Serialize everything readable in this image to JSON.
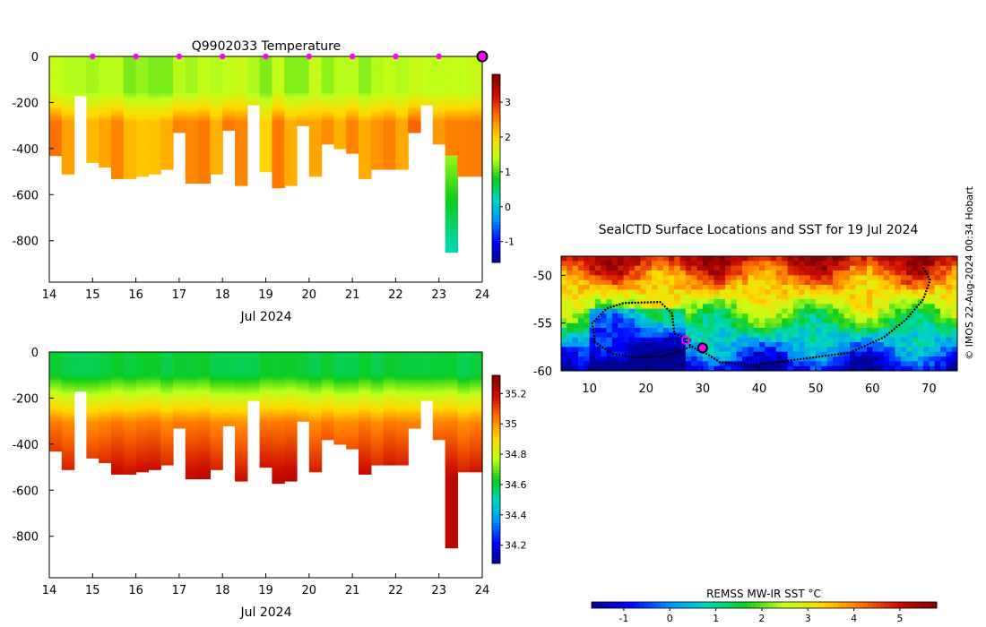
{
  "chart_data": [
    {
      "type": "heatmap",
      "title": "Q9902033  Temperature",
      "xlabel": "Jul 2024",
      "ylabel": "",
      "xlim": [
        14,
        24
      ],
      "ylim": [
        -980,
        0
      ],
      "x_ticks": [
        "14",
        "15",
        "16",
        "17",
        "18",
        "19",
        "20",
        "21",
        "22",
        "23",
        "24"
      ],
      "y_ticks": [
        "0",
        "-200",
        "-400",
        "-600",
        "-800"
      ],
      "colorbar": {
        "ticks": [
          "-1",
          "0",
          "1",
          "2",
          "3"
        ],
        "range": [
          -1.6,
          3.8
        ]
      },
      "surface_marker_days": [
        15,
        16,
        17,
        18,
        19,
        20,
        21,
        22,
        23,
        24
      ],
      "profile_max_depths": [
        430,
        510,
        170,
        455,
        475,
        525,
        530,
        515,
        505,
        490,
        325,
        550,
        550,
        505,
        320,
        555,
        210,
        500,
        565,
        560,
        300,
        515,
        375,
        395,
        420,
        530,
        490,
        490,
        490,
        330,
        210,
        380,
        850,
        520,
        520
      ]
    },
    {
      "type": "heatmap",
      "title": "",
      "xlabel": "Jul 2024",
      "ylabel": "",
      "xlim": [
        14,
        24
      ],
      "ylim": [
        -980,
        0
      ],
      "x_ticks": [
        "14",
        "15",
        "16",
        "17",
        "18",
        "19",
        "20",
        "21",
        "22",
        "23",
        "24"
      ],
      "y_ticks": [
        "0",
        "-200",
        "-400",
        "-600",
        "-800"
      ],
      "colorbar": {
        "ticks": [
          "34.2",
          "34.4",
          "34.6",
          "34.8",
          "35",
          "35.2"
        ],
        "range": [
          34.08,
          35.32
        ]
      }
    },
    {
      "type": "heatmap",
      "title": "SealCTD Surface Locations and SST for 19 Jul 2024",
      "xlabel": "",
      "ylabel": "",
      "xlim": [
        5,
        75
      ],
      "ylim": [
        -60,
        -48
      ],
      "x_ticks": [
        "10",
        "20",
        "30",
        "40",
        "50",
        "60",
        "70"
      ],
      "y_ticks": [
        "-50",
        "-55",
        "-60"
      ],
      "colorbar": {
        "label": "REMSS MW-IR SST °C",
        "ticks": [
          "-1",
          "0",
          "1",
          "2",
          "3",
          "4",
          "5"
        ],
        "range": [
          -1.7,
          5.8
        ]
      },
      "track_waypoints": [
        [
          69,
          -49.2
        ],
        [
          70.2,
          -50.5
        ],
        [
          69,
          -52.5
        ],
        [
          66,
          -54.6
        ],
        [
          62,
          -56.5
        ],
        [
          56,
          -58.1
        ],
        [
          47,
          -58.8
        ],
        [
          39,
          -59.4
        ],
        [
          33,
          -59.1
        ],
        [
          31,
          -58.3
        ],
        [
          29,
          -57.8
        ],
        [
          27,
          -57.0
        ],
        [
          28,
          -56.8
        ],
        [
          25,
          -56.1
        ],
        [
          24.6,
          -54.0
        ],
        [
          22.5,
          -52.8
        ],
        [
          16,
          -52.9
        ],
        [
          13,
          -53.5
        ],
        [
          10.5,
          -55.0
        ],
        [
          11,
          -57.0
        ],
        [
          14,
          -58.2
        ],
        [
          18,
          -58.6
        ],
        [
          23,
          -58.5
        ],
        [
          26.5,
          -57.8
        ],
        [
          28.3,
          -57.4
        ]
      ],
      "current_position": [
        30,
        -57.6
      ],
      "magenta_position": [
        27,
        -56.8
      ]
    }
  ],
  "credit": "© IMOS 22-Aug-2024 00:34 Hobart"
}
